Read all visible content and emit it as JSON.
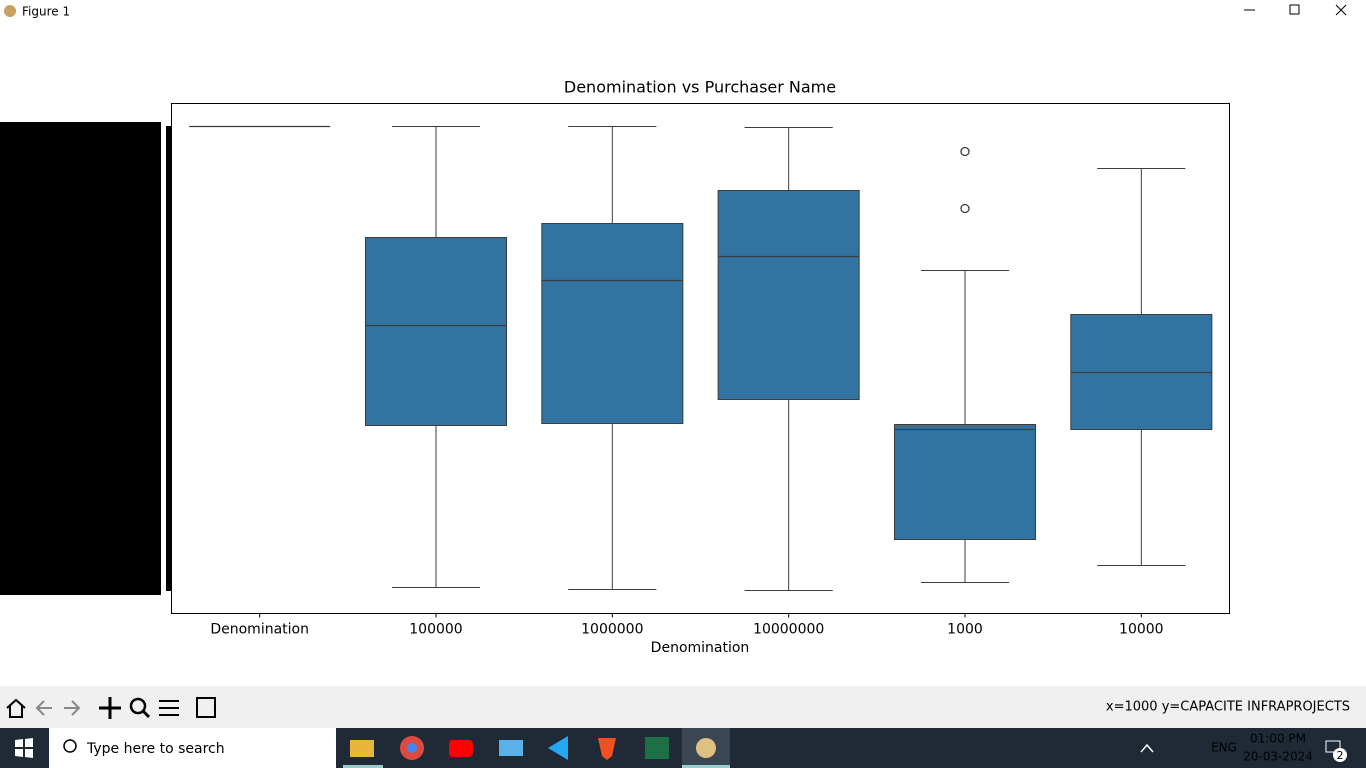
{
  "window": {
    "title": "Figure 1"
  },
  "chart_data": {
    "type": "box",
    "title": "Denomination vs Purchaser Name",
    "x_label": "Denomination",
    "categories": [
      "Denomination",
      "100000",
      "1000000",
      "10000000",
      "1000",
      "10000"
    ],
    "color": "#3274a1",
    "ylim": [
      0,
      510
    ],
    "boxes": [
      {
        "min": 487,
        "q1": 487,
        "median": 487,
        "q3": 487,
        "max": 487,
        "outliers": []
      },
      {
        "min": 26,
        "q1": 188,
        "median": 288,
        "q3": 376,
        "max": 487,
        "outliers": []
      },
      {
        "min": 24,
        "q1": 190,
        "median": 333,
        "q3": 390,
        "max": 487,
        "outliers": []
      },
      {
        "min": 23,
        "q1": 214,
        "median": 357,
        "q3": 423,
        "max": 486,
        "outliers": []
      },
      {
        "min": 31,
        "q1": 74,
        "median": 184,
        "q3": 189,
        "max": 343,
        "outliers": [
          462,
          405
        ]
      },
      {
        "min": 48,
        "q1": 184,
        "median": 241,
        "q3": 299,
        "max": 445,
        "outliers": []
      }
    ]
  },
  "toolbar": {
    "status": "x=1000 y=CAPACITE INFRAPROJECTS"
  },
  "taskbar": {
    "search": "Type here to search",
    "language": "ENG",
    "time": "01:00 PM",
    "date": "20-03-2024",
    "notifications": "2"
  }
}
